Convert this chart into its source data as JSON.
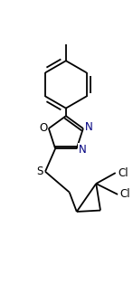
{
  "bg_color": "#ffffff",
  "line_color": "#000000",
  "lw": 1.3,
  "figsize": [
    1.47,
    3.25
  ],
  "dpi": 100,
  "xlim": [
    -1.2,
    1.8
  ],
  "ylim": [
    -2.0,
    3.5
  ]
}
